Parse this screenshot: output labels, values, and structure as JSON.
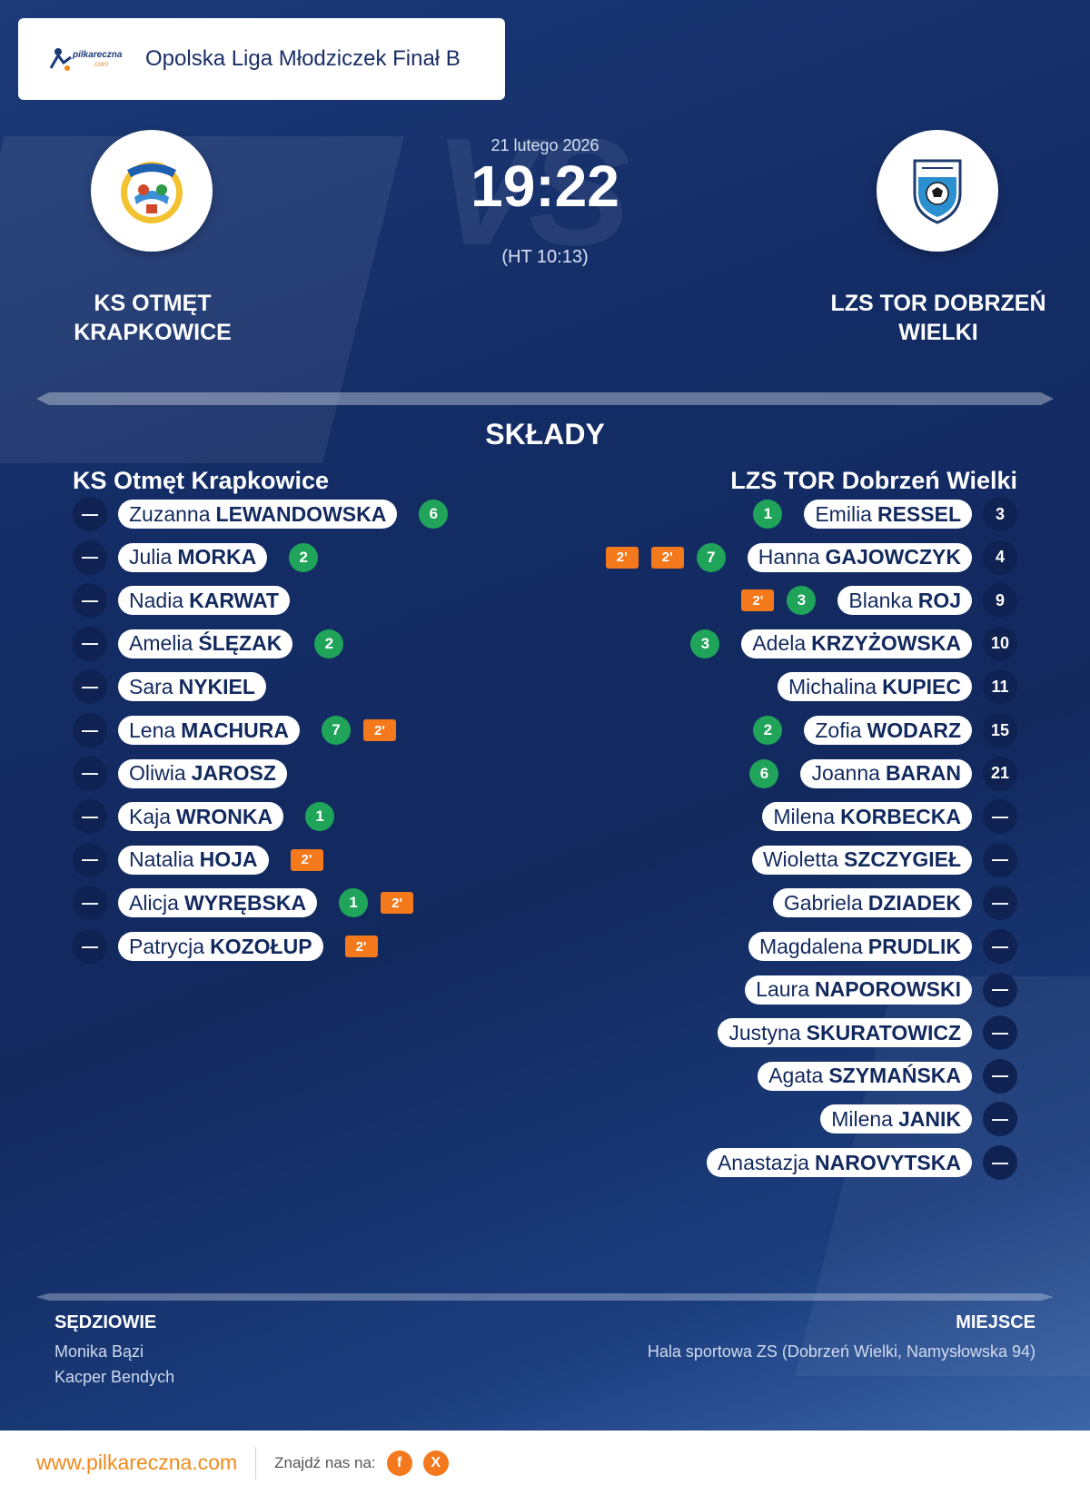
{
  "header": {
    "brand_logo_text": "pilkareczna",
    "brand_logo_sub": ".com",
    "league_title": "Opolska Liga Młodziczek Finał B"
  },
  "match": {
    "date": "21 lutego 2026",
    "score": "19:22",
    "halftime": "(HT 10:13)",
    "vs_watermark": "VS"
  },
  "home_team": {
    "name": "KS  OTMĘT\nKRAPKOWICE",
    "lineup_title": "KS  Otmęt Krapkowice",
    "logo_icon": "ks-otmet-crest-icon"
  },
  "away_team": {
    "name": "LZS TOR DOBRZEŃ\nWIELKI",
    "lineup_title": "LZS TOR Dobrzeń Wielki",
    "logo_icon": "lzs-tor-crest-icon"
  },
  "section_title": "SKŁADY",
  "home_players": [
    {
      "number": "—",
      "first": "Zuzanna",
      "last": "LEWANDOWSKA",
      "goals": "6",
      "suspensions": []
    },
    {
      "number": "—",
      "first": "Julia",
      "last": "MORKA",
      "goals": "2",
      "suspensions": []
    },
    {
      "number": "—",
      "first": "Nadia",
      "last": "KARWAT",
      "goals": "",
      "suspensions": []
    },
    {
      "number": "—",
      "first": "Amelia",
      "last": "ŚLĘZAK",
      "goals": "2",
      "suspensions": []
    },
    {
      "number": "—",
      "first": "Sara",
      "last": "NYKIEL",
      "goals": "",
      "suspensions": []
    },
    {
      "number": "—",
      "first": "Lena",
      "last": "MACHURA",
      "goals": "7",
      "suspensions": [
        "2'"
      ]
    },
    {
      "number": "—",
      "first": "Oliwia",
      "last": "JAROSZ",
      "goals": "",
      "suspensions": []
    },
    {
      "number": "—",
      "first": "Kaja",
      "last": "WRONKA",
      "goals": "1",
      "suspensions": []
    },
    {
      "number": "—",
      "first": "Natalia",
      "last": "HOJA",
      "goals": "",
      "suspensions": [
        "2'"
      ]
    },
    {
      "number": "—",
      "first": "Alicja",
      "last": "WYRĘBSKA",
      "goals": "1",
      "suspensions": [
        "2'"
      ]
    },
    {
      "number": "—",
      "first": "Patrycja",
      "last": "KOZOŁUP",
      "goals": "",
      "suspensions": [
        "2'"
      ]
    }
  ],
  "away_players": [
    {
      "number": "3",
      "first": "Emilia",
      "last": "RESSEL",
      "goals": "1",
      "suspensions": []
    },
    {
      "number": "4",
      "first": "Hanna",
      "last": "GAJOWCZYK",
      "goals": "7",
      "suspensions": [
        "2'",
        "2'"
      ]
    },
    {
      "number": "9",
      "first": "Blanka",
      "last": "ROJ",
      "goals": "3",
      "suspensions": [
        "2'"
      ]
    },
    {
      "number": "10",
      "first": "Adela",
      "last": "KRZYŻOWSKA",
      "goals": "3",
      "suspensions": []
    },
    {
      "number": "11",
      "first": "Michalina",
      "last": "KUPIEC",
      "goals": "",
      "suspensions": []
    },
    {
      "number": "15",
      "first": "Zofia",
      "last": "WODARZ",
      "goals": "2",
      "suspensions": []
    },
    {
      "number": "21",
      "first": "Joanna",
      "last": "BARAN",
      "goals": "6",
      "suspensions": []
    },
    {
      "number": "—",
      "first": "Milena",
      "last": "KORBECKA",
      "goals": "",
      "suspensions": []
    },
    {
      "number": "—",
      "first": "Wioletta",
      "last": "SZCZYGIEŁ",
      "goals": "",
      "suspensions": []
    },
    {
      "number": "—",
      "first": "Gabriela",
      "last": "DZIADEK",
      "goals": "",
      "suspensions": []
    },
    {
      "number": "—",
      "first": "Magdalena",
      "last": "PRUDLIK",
      "goals": "",
      "suspensions": []
    },
    {
      "number": "—",
      "first": "Laura",
      "last": "NAPOROWSKI",
      "goals": "",
      "suspensions": []
    },
    {
      "number": "—",
      "first": "Justyna",
      "last": "SKURATOWICZ",
      "goals": "",
      "suspensions": []
    },
    {
      "number": "—",
      "first": "Agata",
      "last": "SZYMAŃSKA",
      "goals": "",
      "suspensions": []
    },
    {
      "number": "—",
      "first": "Milena",
      "last": "JANIK",
      "goals": "",
      "suspensions": []
    },
    {
      "number": "—",
      "first": "Anastazja",
      "last": "NAROVYTSKA",
      "goals": "",
      "suspensions": []
    }
  ],
  "footer": {
    "referees_label": "SĘDZIOWIE",
    "referees": [
      "Monika Bązi",
      "Kacper Bendych"
    ],
    "venue_label": "MIEJSCE",
    "venue": "Hala sportowa ZS (Dobrzeń Wielki, Namysłowska 94)"
  },
  "bottom_bar": {
    "url": "www.pilkareczna.com",
    "find_us": "Znajdź nas na:",
    "social": [
      {
        "icon": "facebook-icon",
        "glyph": "f"
      },
      {
        "icon": "x-icon",
        "glyph": "X"
      }
    ]
  },
  "colors": {
    "background": "#12295e",
    "accent_orange": "#f4781c",
    "goal_green": "#1fa45a",
    "number_badge": "#0f2252"
  }
}
